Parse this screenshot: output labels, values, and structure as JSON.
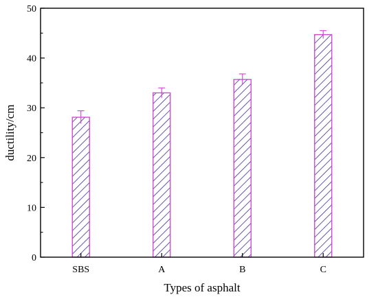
{
  "chart_data": {
    "type": "bar",
    "title": "",
    "xlabel": "Types of asphalt",
    "ylabel": "ductility/cm",
    "categories": [
      "SBS",
      "A",
      "B",
      "C"
    ],
    "values": [
      28.1,
      33.0,
      35.7,
      44.7
    ],
    "errors": [
      1.3,
      1.0,
      1.1,
      0.8
    ],
    "ylim": [
      0,
      50
    ],
    "yticks": [
      0,
      10,
      20,
      30,
      40,
      50
    ],
    "ytick_labels": [
      "0",
      "10",
      "20",
      "30",
      "40",
      "50"
    ],
    "grid": false,
    "legend": "none",
    "bar_color": "#8b2fc9",
    "bar_edge_color": "#d23ed2",
    "hatch_color": "#3b2f9e",
    "error_color": "#d23ed2",
    "axis_color": "#000000"
  }
}
